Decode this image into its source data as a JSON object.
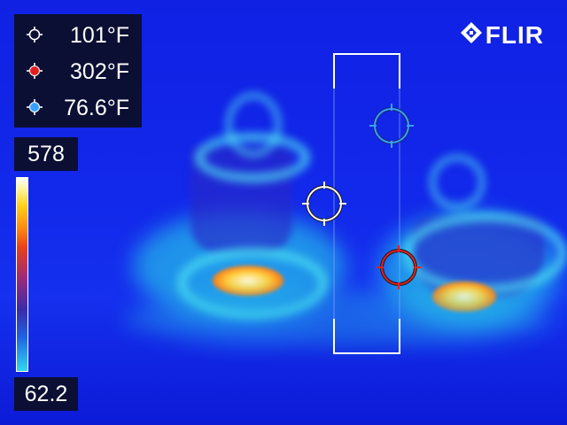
{
  "brand": {
    "name": "FLIR"
  },
  "measurements": [
    {
      "id": "center-spot",
      "value": "101°F",
      "icon": "crosshair-white-icon",
      "color": "#ffffff"
    },
    {
      "id": "hot-spot",
      "value": "302°F",
      "icon": "crosshair-red-icon",
      "color": "#e02020"
    },
    {
      "id": "cold-spot",
      "value": "76.6°F",
      "icon": "crosshair-blue-icon",
      "color": "#3aa0ff"
    }
  ],
  "scale": {
    "max": "578",
    "min": "62.2"
  },
  "colors": {
    "background": "#1228ea",
    "panel": "#0b0f33",
    "hot": "#e02020",
    "cold": "#3aa0ff"
  }
}
